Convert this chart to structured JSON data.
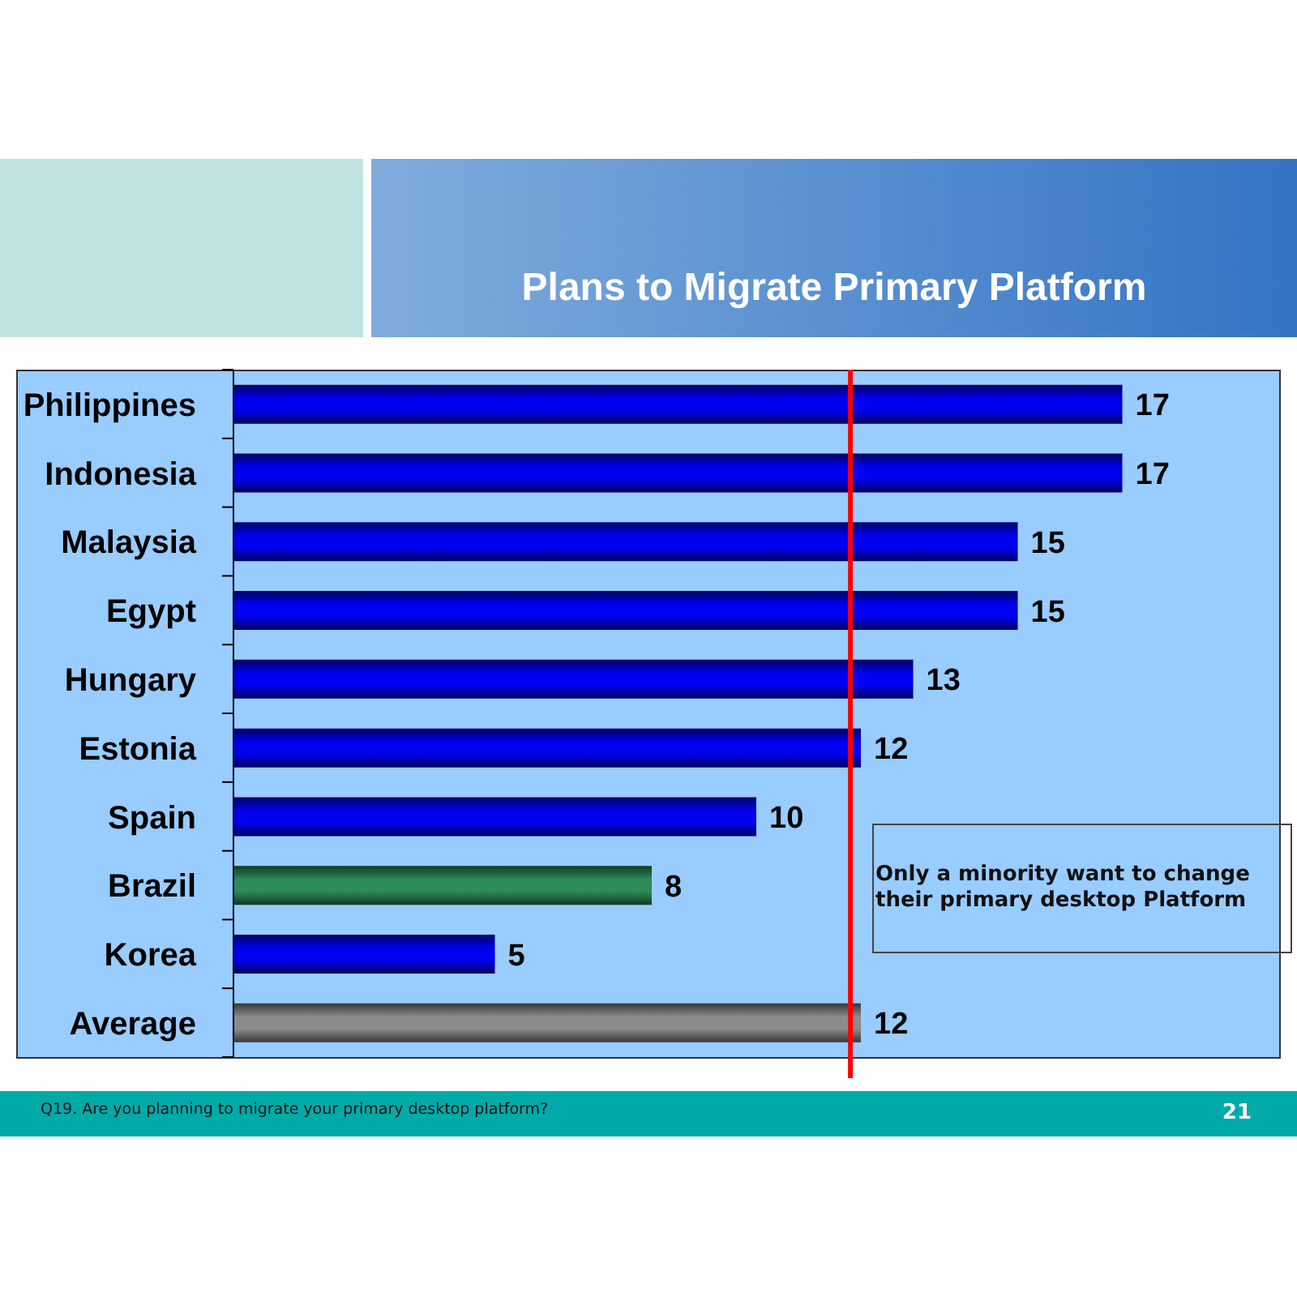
{
  "chart_data": {
    "type": "bar",
    "orientation": "horizontal",
    "title": "Plans to Migrate Primary Platform",
    "categories": [
      "Philippines",
      "Indonesia",
      "Malaysia",
      "Egypt",
      "Hungary",
      "Estonia",
      "Spain",
      "Brazil",
      "Korea",
      "Average"
    ],
    "values": [
      17,
      17,
      15,
      15,
      13,
      12,
      10,
      8,
      5,
      12
    ],
    "colors": [
      "#0000f0",
      "#0000f0",
      "#0000f0",
      "#0000f0",
      "#0000f0",
      "#0000f0",
      "#0000f0",
      "#2e8b5a",
      "#0000f0",
      "#8c8c8c"
    ],
    "xlim": [
      0,
      20
    ],
    "tick_labels": "y",
    "data_labels": true,
    "ref_lines": [
      {
        "axis": "x",
        "value": 11.8,
        "color": "#ff0000"
      }
    ],
    "annotations": [
      "Only a minority want to change their primary desktop Platform",
      "Q19. Are you planning to migrate your primary desktop platform?",
      "21"
    ]
  }
}
